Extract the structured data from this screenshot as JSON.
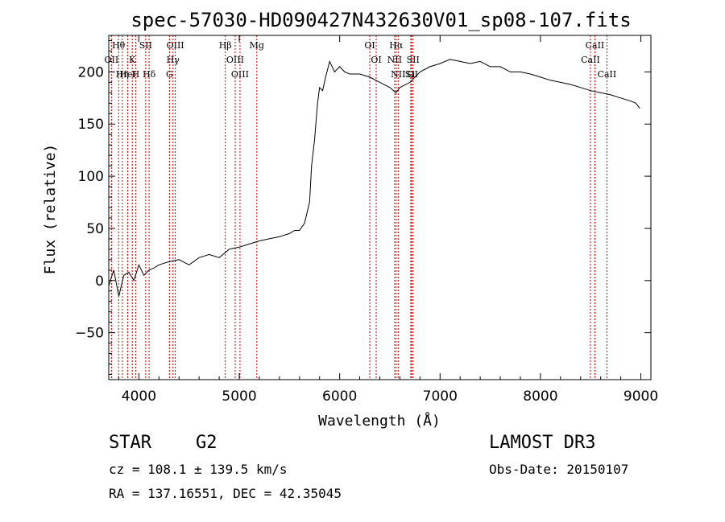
{
  "chart_data": {
    "type": "line",
    "title": "spec-57030-HD090427N432630V01_sp08-107.fits",
    "xlabel": "Wavelength (Å)",
    "ylabel": "Flux (relative)",
    "xlim": [
      3700,
      9100
    ],
    "ylim": [
      -95,
      235
    ],
    "x_ticks": [
      4000,
      5000,
      6000,
      7000,
      8000,
      9000
    ],
    "y_ticks": [
      -50,
      0,
      50,
      100,
      150,
      200
    ],
    "grid": false,
    "series": [
      {
        "x": [
          3700,
          3750,
          3800,
          3850,
          3900,
          3950,
          4000,
          4050,
          4100,
          4150,
          4200,
          4300,
          4400,
          4500,
          4600,
          4700,
          4800,
          4900,
          5000,
          5100,
          5200,
          5300,
          5400,
          5500,
          5550,
          5600,
          5650,
          5700,
          5720,
          5750,
          5780,
          5800,
          5830,
          5860,
          5900,
          5950,
          6000,
          6050,
          6100,
          6200,
          6300,
          6400,
          6500,
          6560,
          6600,
          6700,
          6800,
          6900,
          7000,
          7100,
          7200,
          7300,
          7400,
          7500,
          7600,
          7700,
          7800,
          7900,
          8000,
          8100,
          8200,
          8300,
          8400,
          8500,
          8600,
          8700,
          8800,
          8900,
          8950,
          8990
        ],
        "values": [
          -5,
          10,
          -15,
          5,
          8,
          0,
          15,
          5,
          10,
          12,
          15,
          18,
          20,
          15,
          22,
          25,
          22,
          30,
          32,
          35,
          38,
          40,
          42,
          45,
          48,
          48,
          55,
          75,
          110,
          135,
          170,
          185,
          182,
          195,
          210,
          200,
          205,
          200,
          198,
          198,
          195,
          190,
          185,
          180,
          185,
          190,
          200,
          205,
          208,
          212,
          210,
          208,
          210,
          205,
          205,
          200,
          200,
          198,
          195,
          192,
          190,
          188,
          185,
          182,
          180,
          178,
          175,
          172,
          170,
          165
        ]
      }
    ],
    "line_markers": [
      {
        "label": "Hθ",
        "wavelength": 3798
      },
      {
        "label": "OII",
        "wavelength": 3727
      },
      {
        "label": "Hη",
        "wavelength": 3835
      },
      {
        "label": "HeI",
        "wavelength": 3889
      },
      {
        "label": "K",
        "wavelength": 3934
      },
      {
        "label": "H",
        "wavelength": 3968
      },
      {
        "label": "SII",
        "wavelength": 4068
      },
      {
        "label": "Hδ",
        "wavelength": 4102
      },
      {
        "label": "OIII",
        "wavelength": 4363
      },
      {
        "label": "Hγ",
        "wavelength": 4340
      },
      {
        "label": "G",
        "wavelength": 4305
      },
      {
        "label": "Hβ",
        "wavelength": 4861
      },
      {
        "label": "OIII",
        "wavelength": 4959
      },
      {
        "label": "OIII",
        "wavelength": 5007
      },
      {
        "label": "Mg",
        "wavelength": 5175
      },
      {
        "label": "OI",
        "wavelength": 6300
      },
      {
        "label": "OI",
        "wavelength": 6364
      },
      {
        "label": "Hα",
        "wavelength": 6563
      },
      {
        "label": "NII",
        "wavelength": 6548
      },
      {
        "label": "NII",
        "wavelength": 6583
      },
      {
        "label": "SII",
        "wavelength": 6716
      },
      {
        "label": "SII",
        "wavelength": 6731
      },
      {
        "label": "Li",
        "wavelength": 6708
      },
      {
        "label": "CaII",
        "wavelength": 8542
      },
      {
        "label": "CaII",
        "wavelength": 8498
      },
      {
        "label": "CaII",
        "wavelength": 8662
      }
    ]
  },
  "info": {
    "class_label": "STAR",
    "subclass": "G2",
    "survey": "LAMOST DR3",
    "cz": "cz = 108.1 ± 139.5 km/s",
    "obs_date": "Obs-Date: 20150107",
    "radec": "RA = 137.16551, DEC =  42.35045"
  },
  "colors": {
    "line": "#000000",
    "marker": "#cc0000"
  }
}
